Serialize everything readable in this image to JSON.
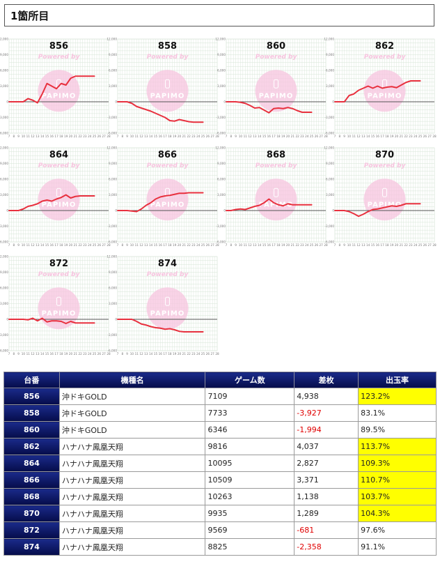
{
  "page": {
    "title": "1箇所目"
  },
  "chart_common": {
    "type": "line",
    "y_ticks": [
      "12,000",
      "9,000",
      "6,000",
      "3,000",
      "0",
      "-3,000",
      "-6,000"
    ],
    "ylim": [
      -6000,
      12000
    ],
    "x_ticks": [
      "7",
      "8",
      "9",
      "10",
      "11",
      "12",
      "13",
      "14",
      "15",
      "16",
      "17",
      "18",
      "19",
      "20",
      "21",
      "22",
      "23",
      "24",
      "25",
      "26",
      "27",
      "28"
    ],
    "watermark_text": "Powered by",
    "watermark_brand": "PAPIMO",
    "line_color": "#e8303e",
    "watermark_color": "#f7c4df",
    "grid": true
  },
  "chart_data": [
    {
      "type": "line",
      "title": "856",
      "x": [
        7,
        8,
        9,
        10,
        11,
        12,
        13,
        14,
        15,
        16,
        17,
        18,
        19,
        20,
        21,
        22,
        23,
        24,
        25
      ],
      "y": [
        0,
        0,
        0,
        0,
        600,
        300,
        -200,
        1500,
        3500,
        3000,
        2500,
        3500,
        3200,
        4500,
        4900,
        4900,
        4900,
        4900,
        4900
      ]
    },
    {
      "type": "line",
      "title": "858",
      "x": [
        7,
        8,
        9,
        10,
        11,
        12,
        13,
        14,
        15,
        16,
        17,
        18,
        19,
        20,
        21,
        22,
        23,
        24,
        25
      ],
      "y": [
        0,
        0,
        0,
        -300,
        -900,
        -1200,
        -1500,
        -1800,
        -2200,
        -2600,
        -3000,
        -3600,
        -3700,
        -3400,
        -3600,
        -3800,
        -3900,
        -3900,
        -3900
      ]
    },
    {
      "type": "line",
      "title": "860",
      "x": [
        7,
        8,
        9,
        10,
        11,
        12,
        13,
        14,
        15,
        16,
        17,
        18,
        19,
        20,
        21,
        22,
        23,
        24,
        25
      ],
      "y": [
        0,
        0,
        0,
        -100,
        -300,
        -700,
        -1200,
        -1100,
        -1600,
        -2100,
        -1300,
        -1200,
        -1300,
        -1100,
        -1300,
        -1700,
        -2000,
        -2000,
        -2000
      ]
    },
    {
      "type": "line",
      "title": "862",
      "x": [
        7,
        8,
        9,
        10,
        11,
        12,
        13,
        14,
        15,
        16,
        17,
        18,
        19,
        20,
        21,
        22,
        23,
        24,
        25
      ],
      "y": [
        0,
        0,
        0,
        1200,
        1500,
        2200,
        2600,
        3000,
        2600,
        3000,
        2600,
        2800,
        2900,
        2700,
        3200,
        3700,
        4000,
        4000,
        4000
      ]
    },
    {
      "type": "line",
      "title": "864",
      "x": [
        7,
        8,
        9,
        10,
        11,
        12,
        13,
        14,
        15,
        16,
        17,
        18,
        19,
        20,
        21,
        22,
        23,
        24,
        25
      ],
      "y": [
        0,
        0,
        0,
        300,
        800,
        1000,
        1300,
        1800,
        2000,
        1800,
        2200,
        2500,
        3000,
        2400,
        2700,
        2800,
        2800,
        2800,
        2800
      ]
    },
    {
      "type": "line",
      "title": "866",
      "x": [
        7,
        8,
        9,
        10,
        11,
        12,
        13,
        14,
        15,
        16,
        17,
        18,
        19,
        20,
        21,
        22,
        23,
        24,
        25
      ],
      "y": [
        0,
        0,
        0,
        -100,
        -200,
        300,
        1000,
        1500,
        2200,
        2600,
        2800,
        2900,
        3100,
        3300,
        3300,
        3400,
        3400,
        3400,
        3400
      ]
    },
    {
      "type": "line",
      "title": "868",
      "x": [
        7,
        8,
        9,
        10,
        11,
        12,
        13,
        14,
        15,
        16,
        17,
        18,
        19,
        20,
        21,
        22,
        23,
        24,
        25
      ],
      "y": [
        0,
        0,
        200,
        300,
        200,
        500,
        800,
        1000,
        1500,
        2200,
        1500,
        1100,
        900,
        1300,
        1100,
        1100,
        1100,
        1100,
        1100
      ]
    },
    {
      "type": "line",
      "title": "870",
      "x": [
        7,
        8,
        9,
        10,
        11,
        12,
        13,
        14,
        15,
        16,
        17,
        18,
        19,
        20,
        21,
        22,
        23,
        24,
        25
      ],
      "y": [
        0,
        0,
        0,
        -200,
        -600,
        -1100,
        -700,
        -200,
        200,
        300,
        500,
        700,
        900,
        800,
        1000,
        1300,
        1300,
        1300,
        1300
      ]
    },
    {
      "type": "line",
      "title": "872",
      "x": [
        7,
        8,
        9,
        10,
        11,
        12,
        13,
        14,
        15,
        16,
        17,
        18,
        19,
        20,
        21,
        22,
        23,
        24,
        25
      ],
      "y": [
        0,
        0,
        0,
        0,
        -100,
        200,
        -300,
        200,
        -500,
        -300,
        -300,
        -400,
        -800,
        -400,
        -700,
        -700,
        -700,
        -700,
        -700
      ]
    },
    {
      "type": "line",
      "title": "874",
      "x": [
        7,
        8,
        9,
        10,
        11,
        12,
        13,
        14,
        15,
        16,
        17,
        18,
        19,
        20,
        21,
        22,
        23,
        24,
        25
      ],
      "y": [
        0,
        0,
        0,
        0,
        -400,
        -900,
        -1100,
        -1400,
        -1600,
        -1700,
        -1900,
        -1800,
        -2000,
        -2300,
        -2400,
        -2400,
        -2400,
        -2400,
        -2400
      ]
    }
  ],
  "table": {
    "headers": [
      "台番",
      "機種名",
      "ゲーム数",
      "差枚",
      "出玉率"
    ],
    "rows": [
      {
        "no": "856",
        "model": "沖ドキGOLD",
        "games": "7109",
        "diff": "4,938",
        "rate": "123.2%",
        "neg": false,
        "hl": true
      },
      {
        "no": "858",
        "model": "沖ドキGOLD",
        "games": "7733",
        "diff": "-3,927",
        "rate": "83.1%",
        "neg": true,
        "hl": false
      },
      {
        "no": "860",
        "model": "沖ドキGOLD",
        "games": "6346",
        "diff": "-1,994",
        "rate": "89.5%",
        "neg": true,
        "hl": false
      },
      {
        "no": "862",
        "model": "ハナハナ鳳凰天翔",
        "games": "9816",
        "diff": "4,037",
        "rate": "113.7%",
        "neg": false,
        "hl": true
      },
      {
        "no": "864",
        "model": "ハナハナ鳳凰天翔",
        "games": "10095",
        "diff": "2,827",
        "rate": "109.3%",
        "neg": false,
        "hl": true
      },
      {
        "no": "866",
        "model": "ハナハナ鳳凰天翔",
        "games": "10509",
        "diff": "3,371",
        "rate": "110.7%",
        "neg": false,
        "hl": true
      },
      {
        "no": "868",
        "model": "ハナハナ鳳凰天翔",
        "games": "10263",
        "diff": "1,138",
        "rate": "103.7%",
        "neg": false,
        "hl": true
      },
      {
        "no": "870",
        "model": "ハナハナ鳳凰天翔",
        "games": "9935",
        "diff": "1,289",
        "rate": "104.3%",
        "neg": false,
        "hl": true
      },
      {
        "no": "872",
        "model": "ハナハナ鳳凰天翔",
        "games": "9569",
        "diff": "-681",
        "rate": "97.6%",
        "neg": true,
        "hl": false
      },
      {
        "no": "874",
        "model": "ハナハナ鳳凰天翔",
        "games": "8825",
        "diff": "-2,358",
        "rate": "91.1%",
        "neg": true,
        "hl": false
      }
    ]
  }
}
